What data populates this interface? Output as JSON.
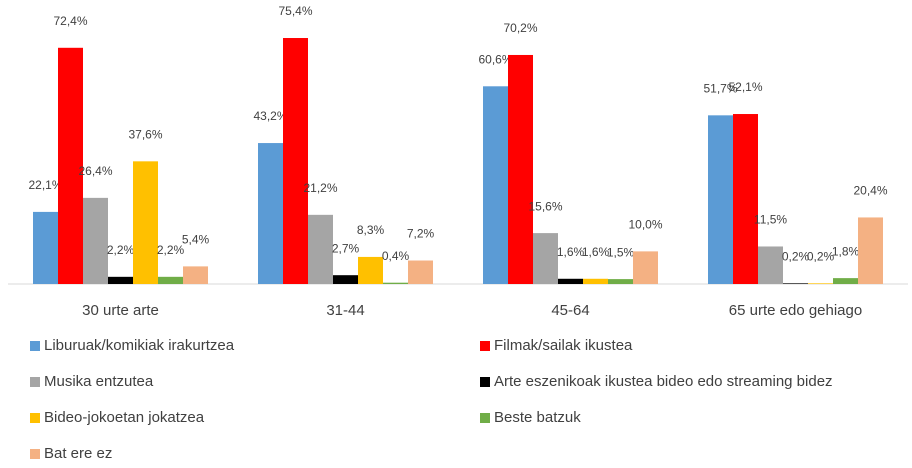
{
  "chart_data": {
    "type": "bar",
    "categories": [
      "30 urte arte",
      "31-44",
      "45-64",
      "65 urte edo gehiago"
    ],
    "ylim": [
      0,
      80
    ],
    "series": [
      {
        "name": "Liburuak/komikiak irakurtzea",
        "color": "#5B9BD5",
        "values": [
          22.1,
          43.2,
          60.6,
          51.7
        ],
        "value_labels": [
          "22,1%",
          "43,2%",
          "60,6%",
          "51,7%"
        ]
      },
      {
        "name": "Filmak/sailak ikustea",
        "color": "#FF0000",
        "values": [
          72.4,
          75.4,
          70.2,
          52.1
        ],
        "value_labels": [
          "72,4%",
          "75,4%",
          "70,2%",
          "52,1%"
        ]
      },
      {
        "name": "Musika entzutea",
        "color": "#A5A5A5",
        "values": [
          26.4,
          21.2,
          15.6,
          11.5
        ],
        "value_labels": [
          "26,4%",
          "21,2%",
          "15,6%",
          "11,5%"
        ]
      },
      {
        "name": "Arte eszenikoak ikustea bideo edo streaming bidez",
        "color": "#000000",
        "values": [
          2.2,
          2.7,
          1.6,
          0.2
        ],
        "value_labels": [
          "2,2%",
          "2,7%",
          "1,6%",
          "0,2%"
        ]
      },
      {
        "name": "Bideo-jokoetan jokatzea",
        "color": "#FFC000",
        "values": [
          37.6,
          8.3,
          1.6,
          0.2
        ],
        "value_labels": [
          "37,6%",
          "8,3%",
          "1,6%",
          "0,2%"
        ]
      },
      {
        "name": "Beste batzuk",
        "color": "#70AD47",
        "values": [
          2.2,
          0.4,
          1.5,
          1.8
        ],
        "value_labels": [
          "2,2%",
          "0,4%",
          "1,5%",
          "1,8%"
        ]
      },
      {
        "name": "Bat ere ez",
        "color": "#F4B183",
        "values": [
          5.4,
          7.2,
          10.0,
          20.4
        ],
        "value_labels": [
          "5,4%",
          "7,2%",
          "10,0%",
          "20,4%"
        ]
      }
    ]
  }
}
